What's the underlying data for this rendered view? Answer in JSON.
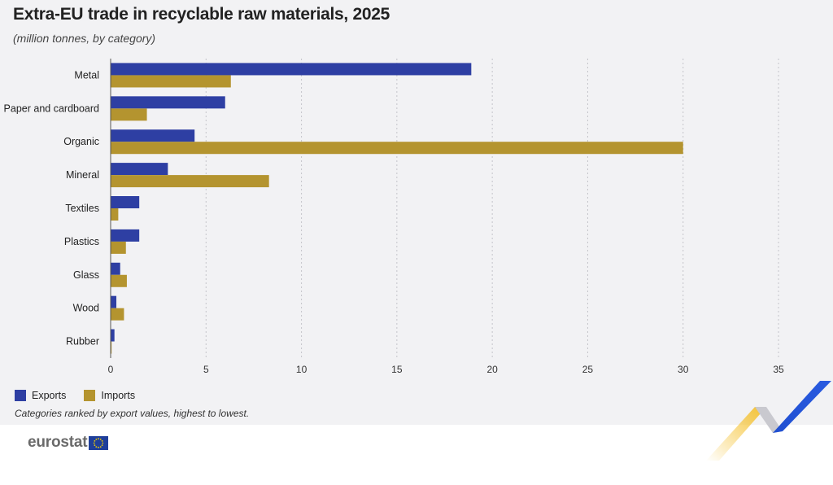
{
  "title": "Extra-EU trade in recyclable raw materials, 2025",
  "subtitle": "(million tonnes, by category)",
  "legend": {
    "exports": "Exports",
    "imports": "Imports"
  },
  "footnote": "Categories ranked by export values, highest to lowest.",
  "logo": {
    "text": "eurostat"
  },
  "colors": {
    "exports": "#2e3fa3",
    "imports": "#b4942f",
    "panel": "#f2f2f4",
    "brand_blue": "#1f4fd1",
    "brand_yellow": "#f5c12e"
  },
  "chart_data": {
    "type": "bar",
    "orientation": "horizontal",
    "categories": [
      "Metal",
      "Paper and cardboard",
      "Organic",
      "Mineral",
      "Textiles",
      "Plastics",
      "Glass",
      "Wood",
      "Rubber"
    ],
    "series": [
      {
        "name": "Exports",
        "values": [
          18.9,
          6.0,
          4.4,
          3.0,
          1.5,
          1.5,
          0.5,
          0.3,
          0.2
        ]
      },
      {
        "name": "Imports",
        "values": [
          6.3,
          1.9,
          30.0,
          8.3,
          0.4,
          0.8,
          0.85,
          0.7,
          0.05
        ]
      }
    ],
    "x_ticks": [
      0,
      5,
      10,
      15,
      20,
      25,
      30,
      35
    ],
    "xlim": [
      0,
      35
    ],
    "grid": "vertical-dotted",
    "legend_position": "bottom-left"
  }
}
